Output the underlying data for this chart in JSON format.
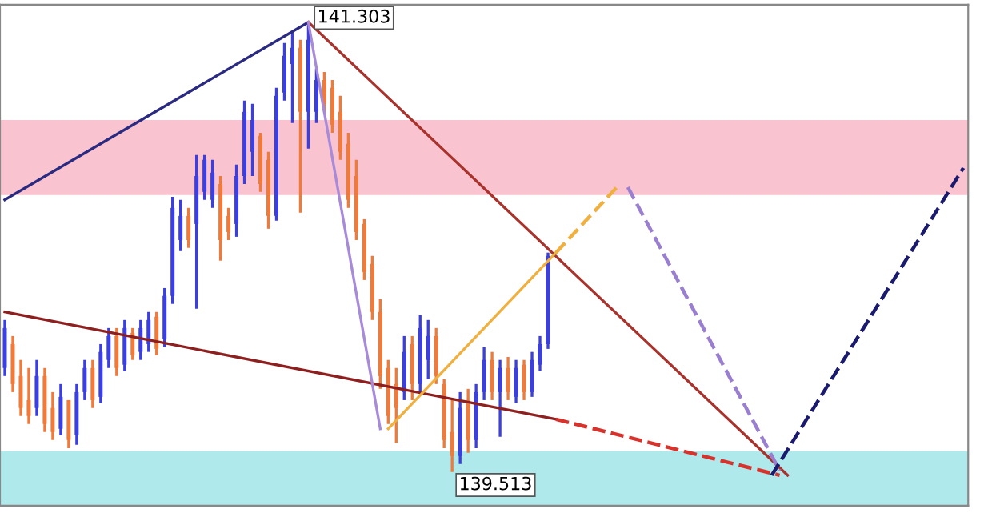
{
  "chart_data": {
    "type": "candlestick",
    "categories": [
      null,
      null,
      null,
      null,
      null,
      null,
      null,
      null,
      null,
      null,
      null,
      null,
      null,
      null,
      null,
      null,
      null,
      null,
      null,
      null,
      null,
      null,
      null,
      null,
      null,
      null,
      null,
      null,
      null,
      null,
      null,
      null,
      null,
      null,
      null,
      null,
      null,
      null,
      null,
      null,
      null,
      null,
      null,
      null,
      null,
      null,
      null,
      null,
      null,
      null,
      null,
      null,
      null,
      null,
      null,
      null,
      null,
      null,
      null,
      null,
      null,
      null,
      null,
      null,
      null,
      null,
      null,
      null,
      null,
      null,
      null,
      null,
      null,
      null,
      null,
      null,
      null,
      null,
      null,
      null,
      null,
      null,
      null,
      null,
      null,
      null,
      null,
      null,
      null,
      null,
      null,
      null,
      null,
      null,
      null,
      null,
      null,
      null,
      null,
      null,
      null,
      null,
      null,
      null,
      null,
      null,
      null,
      null,
      null,
      null,
      null,
      null,
      null,
      null,
      null,
      null,
      null,
      null,
      null,
      null,
      null
    ],
    "ohlc": [
      [
        139.927,
        140.118,
        139.895,
        140.086
      ],
      [
        140.022,
        140.054,
        139.831,
        139.863
      ],
      [
        139.895,
        139.959,
        139.736,
        139.768
      ],
      [
        139.799,
        139.927,
        139.704,
        139.736
      ],
      [
        139.768,
        139.959,
        139.736,
        139.895
      ],
      [
        139.895,
        139.927,
        139.672,
        139.704
      ],
      [
        139.768,
        139.831,
        139.64,
        139.672
      ],
      [
        139.685,
        139.863,
        139.659,
        139.812
      ],
      [
        139.799,
        139.799,
        139.608,
        139.64
      ],
      [
        139.659,
        139.863,
        139.621,
        139.831
      ],
      [
        139.831,
        139.959,
        139.799,
        139.927
      ],
      [
        139.927,
        139.959,
        139.768,
        139.799
      ],
      [
        139.812,
        140.022,
        139.787,
        139.991
      ],
      [
        139.959,
        140.086,
        139.927,
        140.054
      ],
      [
        140.054,
        140.086,
        139.895,
        139.927
      ],
      [
        139.94,
        140.118,
        139.914,
        140.086
      ],
      [
        140.067,
        140.086,
        139.959,
        139.978
      ],
      [
        139.991,
        140.118,
        139.959,
        140.086
      ],
      [
        140.022,
        140.15,
        139.991,
        140.118
      ],
      [
        140.131,
        140.15,
        139.978,
        140.003
      ],
      [
        140.042,
        140.245,
        140.01,
        140.214
      ],
      [
        140.214,
        140.608,
        140.182,
        140.564
      ],
      [
        140.436,
        140.596,
        140.392,
        140.532
      ],
      [
        140.532,
        140.564,
        140.405,
        140.436
      ],
      [
        140.5,
        140.774,
        140.163,
        140.691
      ],
      [
        140.628,
        140.774,
        140.596,
        140.755
      ],
      [
        140.596,
        140.755,
        140.564,
        140.704
      ],
      [
        140.659,
        140.691,
        140.354,
        140.436
      ],
      [
        140.532,
        140.564,
        140.436,
        140.468
      ],
      [
        140.5,
        140.736,
        140.449,
        140.691
      ],
      [
        140.691,
        140.991,
        140.659,
        140.946
      ],
      [
        140.787,
        140.978,
        140.691,
        140.914
      ],
      [
        140.851,
        140.863,
        140.628,
        140.659
      ],
      [
        140.755,
        140.787,
        140.481,
        140.532
      ],
      [
        140.532,
        141.042,
        140.513,
        141.01
      ],
      [
        141.023,
        141.22,
        140.991,
        141.169
      ],
      [
        141.137,
        141.265,
        140.902,
        141.201
      ],
      [
        141.201,
        141.233,
        140.545,
        140.946
      ],
      [
        140.946,
        141.303,
        140.8,
        141.233
      ],
      [
        140.946,
        141.118,
        140.902,
        141.073
      ],
      [
        141.073,
        141.105,
        140.946,
        140.978
      ],
      [
        141.042,
        141.073,
        140.863,
        140.895
      ],
      [
        140.946,
        141.01,
        140.755,
        140.787
      ],
      [
        140.819,
        140.863,
        140.564,
        140.596
      ],
      [
        140.691,
        140.755,
        140.436,
        140.468
      ],
      [
        140.5,
        140.519,
        140.277,
        140.309
      ],
      [
        140.341,
        140.373,
        140.118,
        140.15
      ],
      [
        140.15,
        140.201,
        139.844,
        139.895
      ],
      [
        139.927,
        139.959,
        139.704,
        139.736
      ],
      [
        139.863,
        139.927,
        139.628,
        139.768
      ],
      [
        139.831,
        140.054,
        139.799,
        139.991
      ],
      [
        140.022,
        140.054,
        139.799,
        139.863
      ],
      [
        139.863,
        140.137,
        139.831,
        140.086
      ],
      [
        139.959,
        140.118,
        139.882,
        140.054
      ],
      [
        140.054,
        140.086,
        139.863,
        139.895
      ],
      [
        139.863,
        139.882,
        139.608,
        139.64
      ],
      [
        139.672,
        139.799,
        139.513,
        139.577
      ],
      [
        139.577,
        139.831,
        139.545,
        139.768
      ],
      [
        139.799,
        139.844,
        139.589,
        139.64
      ],
      [
        139.64,
        139.863,
        139.608,
        139.831
      ],
      [
        139.831,
        140.01,
        139.799,
        139.959
      ],
      [
        139.959,
        139.991,
        139.799,
        139.831
      ],
      [
        139.831,
        139.959,
        139.653,
        139.927
      ],
      [
        139.927,
        139.971,
        139.799,
        139.831
      ],
      [
        139.812,
        139.959,
        139.787,
        139.927
      ],
      [
        139.94,
        139.959,
        139.799,
        139.831
      ],
      [
        139.831,
        139.991,
        139.812,
        139.959
      ],
      [
        139.94,
        140.054,
        139.914,
        140.022
      ],
      [
        140.022,
        140.386,
        140.003,
        140.373
      ],
      null,
      null,
      null,
      null,
      null,
      null,
      null,
      null,
      null,
      null,
      null,
      null,
      null,
      null,
      null,
      null,
      null,
      null,
      null,
      null,
      null,
      null,
      null,
      null,
      null,
      null,
      null,
      null,
      null,
      null,
      null,
      null,
      null,
      null,
      null,
      null,
      null,
      null,
      null,
      null,
      null,
      null,
      null,
      null,
      null,
      null,
      null,
      null,
      null,
      null,
      null,
      null
    ],
    "colors": [
      "#3b3fe0",
      "#f07a3a",
      "#f07a3a",
      "#f07a3a",
      "#3b3fe0",
      "#f07a3a",
      "#f07a3a",
      "#3b3fe0",
      "#f07a3a",
      "#3b3fe0",
      "#3b3fe0",
      "#f07a3a",
      "#3b3fe0",
      "#3b3fe0",
      "#f07a3a",
      "#3b3fe0",
      "#f07a3a",
      "#3b3fe0",
      "#3b3fe0",
      "#f07a3a",
      "#3b3fe0",
      "#3b3fe0",
      "#3b3fe0",
      "#f07a3a",
      "#3b3fe0",
      "#3b3fe0",
      "#3b3fe0",
      "#f07a3a",
      "#f07a3a",
      "#3b3fe0",
      "#3b3fe0",
      "#3b3fe0",
      "#f07a3a",
      "#f07a3a",
      "#3b3fe0",
      "#3b3fe0",
      "#3b3fe0",
      "#f07a3a",
      "#3b3fe0",
      "#3b3fe0",
      "#f07a3a",
      "#f07a3a",
      "#f07a3a",
      "#f07a3a",
      "#f07a3a",
      "#f07a3a",
      "#f07a3a",
      "#f07a3a",
      "#f07a3a",
      "#f07a3a",
      "#3b3fe0",
      "#f07a3a",
      "#3b3fe0",
      "#3b3fe0",
      "#f07a3a",
      "#f07a3a",
      "#f07a3a",
      "#3b3fe0",
      "#f07a3a",
      "#3b3fe0",
      "#3b3fe0",
      "#f07a3a",
      "#3b3fe0",
      "#f07a3a",
      "#3b3fe0",
      "#f07a3a",
      "#3b3fe0",
      "#3b3fe0",
      "#3b3fe0",
      null,
      null,
      null,
      null,
      null,
      null,
      null,
      null,
      null,
      null,
      null,
      null,
      null,
      null,
      null,
      null,
      null,
      null,
      null,
      null,
      null,
      null,
      null,
      null,
      null,
      null,
      null,
      null,
      null,
      null,
      null,
      null,
      null,
      null,
      null,
      null,
      null,
      null,
      null,
      null,
      null,
      null,
      null,
      null,
      null,
      null,
      null,
      null,
      null,
      null,
      null,
      null
    ],
    "series": [
      {
        "type": "line",
        "color": "#2a2a80",
        "values": [
          140.596,
          null,
          null,
          null,
          null,
          null,
          null,
          null,
          null,
          null,
          null,
          null,
          null,
          null,
          null,
          null,
          null,
          null,
          null,
          null,
          null,
          null,
          null,
          null,
          null,
          null,
          null,
          null,
          null,
          null,
          null,
          null,
          null,
          null,
          null,
          null,
          null,
          null,
          141.303,
          null,
          null,
          null,
          null,
          null,
          null,
          null,
          null,
          null,
          null,
          null,
          null,
          null,
          null,
          null,
          null,
          null,
          null,
          null,
          null,
          null,
          null,
          null,
          null,
          null,
          null,
          null,
          null,
          null,
          null,
          null,
          null,
          null,
          null,
          null,
          null,
          null,
          null,
          null,
          null,
          null,
          null,
          null,
          null,
          null,
          null,
          null,
          null,
          null,
          null,
          null,
          null,
          null,
          null,
          null,
          null,
          null,
          null,
          null,
          null,
          null,
          null,
          null,
          null,
          null,
          null,
          null,
          null,
          null,
          null,
          null,
          null,
          null,
          null,
          null,
          null,
          null,
          null,
          null,
          null,
          null,
          null
        ]
      },
      {
        "type": "line",
        "color": "#a8322c",
        "values": [
          null,
          null,
          null,
          null,
          null,
          null,
          null,
          null,
          null,
          null,
          null,
          null,
          null,
          null,
          null,
          null,
          null,
          null,
          null,
          null,
          null,
          null,
          null,
          null,
          null,
          null,
          null,
          null,
          null,
          null,
          null,
          null,
          null,
          null,
          null,
          null,
          null,
          null,
          141.303,
          null,
          null,
          null,
          null,
          null,
          null,
          null,
          null,
          null,
          null,
          null,
          null,
          null,
          null,
          null,
          null,
          null,
          null,
          null,
          null,
          null,
          null,
          null,
          null,
          null,
          null,
          null,
          null,
          null,
          null,
          null,
          null,
          null,
          null,
          null,
          null,
          null,
          null,
          null,
          null,
          null,
          null,
          null,
          null,
          null,
          null,
          null,
          null,
          null,
          null,
          null,
          null,
          null,
          null,
          null,
          null,
          null,
          null,
          null,
          139.5,
          null,
          null,
          null,
          null,
          null,
          null,
          null,
          null,
          null,
          null,
          null,
          null,
          null,
          null,
          null,
          null,
          null,
          null,
          null,
          null,
          null,
          null
        ]
      },
      {
        "type": "line",
        "color": "#8e1f1f",
        "values": [
          140.15,
          null,
          null,
          null,
          null,
          null,
          null,
          null,
          null,
          null,
          null,
          null,
          null,
          null,
          null,
          null,
          null,
          null,
          null,
          null,
          null,
          null,
          null,
          null,
          null,
          null,
          null,
          null,
          null,
          null,
          null,
          null,
          null,
          null,
          null,
          null,
          null,
          null,
          null,
          null,
          null,
          null,
          null,
          null,
          null,
          null,
          null,
          null,
          null,
          null,
          null,
          null,
          null,
          null,
          null,
          null,
          null,
          null,
          null,
          null,
          null,
          null,
          null,
          null,
          null,
          null,
          null,
          null,
          null,
          139.723,
          null,
          null,
          null,
          null,
          null,
          null,
          null,
          null,
          null,
          null,
          null,
          null,
          null,
          null,
          null,
          null,
          null,
          null,
          null,
          null,
          null,
          null,
          null,
          null,
          null,
          null,
          null,
          null,
          null,
          null,
          null,
          null,
          null,
          null,
          null,
          null,
          null,
          null,
          null,
          null,
          null,
          null,
          null,
          null,
          null,
          null,
          null,
          null,
          null,
          null,
          null
        ]
      },
      {
        "type": "line",
        "color": "#d8322c",
        "line_style": "dashed",
        "values": [
          null,
          null,
          null,
          null,
          null,
          null,
          null,
          null,
          null,
          null,
          null,
          null,
          null,
          null,
          null,
          null,
          null,
          null,
          null,
          null,
          null,
          null,
          null,
          null,
          null,
          null,
          null,
          null,
          null,
          null,
          null,
          null,
          null,
          null,
          null,
          null,
          null,
          null,
          null,
          null,
          null,
          null,
          null,
          null,
          null,
          null,
          null,
          null,
          null,
          null,
          null,
          null,
          null,
          null,
          null,
          null,
          null,
          null,
          null,
          null,
          null,
          null,
          null,
          null,
          null,
          null,
          null,
          null,
          null,
          139.723,
          null,
          null,
          null,
          null,
          null,
          null,
          null,
          null,
          null,
          null,
          null,
          null,
          null,
          null,
          null,
          null,
          null,
          null,
          null,
          null,
          null,
          null,
          null,
          null,
          null,
          null,
          null,
          139.5,
          null,
          null,
          null,
          null,
          null,
          null,
          null,
          null,
          null,
          null,
          null,
          null,
          null,
          null,
          null,
          null,
          null,
          null,
          null,
          null,
          null,
          null,
          null
        ]
      },
      {
        "type": "line",
        "color": "#a78ad8",
        "values": [
          null,
          null,
          null,
          null,
          null,
          null,
          null,
          null,
          null,
          null,
          null,
          null,
          null,
          null,
          null,
          null,
          null,
          null,
          null,
          null,
          null,
          null,
          null,
          null,
          null,
          null,
          null,
          null,
          null,
          null,
          null,
          null,
          null,
          null,
          null,
          null,
          null,
          null,
          141.303,
          null,
          null,
          null,
          null,
          null,
          null,
          null,
          null,
          139.685,
          null,
          null,
          null,
          null,
          null,
          null,
          null,
          null,
          null,
          null,
          null,
          null,
          null,
          null,
          null,
          null,
          null,
          null,
          null,
          null,
          null,
          null,
          null,
          null,
          null,
          null,
          null,
          null,
          null,
          null,
          null,
          null,
          null,
          null,
          null,
          null,
          null,
          null,
          null,
          null,
          null,
          null,
          null,
          null,
          null,
          null,
          null,
          null,
          null,
          null,
          null,
          null,
          null,
          null,
          null,
          null,
          null,
          null,
          null,
          null,
          null,
          null,
          null,
          null,
          null,
          null,
          null,
          null,
          null,
          null,
          null,
          null,
          null
        ]
      },
      {
        "type": "line",
        "color": "#f0b040",
        "values": [
          null,
          null,
          null,
          null,
          null,
          null,
          null,
          null,
          null,
          null,
          null,
          null,
          null,
          null,
          null,
          null,
          null,
          null,
          null,
          null,
          null,
          null,
          null,
          null,
          null,
          null,
          null,
          null,
          null,
          null,
          null,
          null,
          null,
          null,
          null,
          null,
          null,
          null,
          null,
          null,
          null,
          null,
          null,
          null,
          null,
          null,
          null,
          null,
          139.685,
          null,
          null,
          null,
          null,
          null,
          null,
          null,
          null,
          null,
          null,
          null,
          null,
          null,
          null,
          null,
          null,
          null,
          null,
          null,
          null,
          140.386,
          null,
          null,
          null,
          null,
          null,
          null,
          null,
          null,
          null,
          null,
          null,
          null,
          null,
          null,
          null,
          null,
          null,
          null,
          null,
          null,
          null,
          null,
          null,
          null,
          null,
          null,
          null,
          null,
          null,
          null,
          null,
          null,
          null,
          null,
          null,
          null,
          null,
          null,
          null,
          null,
          null,
          null,
          null,
          null,
          null,
          null,
          null,
          null,
          null,
          null,
          null
        ]
      },
      {
        "type": "line",
        "color": "#f0b040",
        "line_style": "dashed",
        "values": [
          null,
          null,
          null,
          null,
          null,
          null,
          null,
          null,
          null,
          null,
          null,
          null,
          null,
          null,
          null,
          null,
          null,
          null,
          null,
          null,
          null,
          null,
          null,
          null,
          null,
          null,
          null,
          null,
          null,
          null,
          null,
          null,
          null,
          null,
          null,
          null,
          null,
          null,
          null,
          null,
          null,
          null,
          null,
          null,
          null,
          null,
          null,
          null,
          null,
          null,
          null,
          null,
          null,
          null,
          null,
          null,
          null,
          null,
          null,
          null,
          null,
          null,
          null,
          null,
          null,
          null,
          null,
          null,
          null,
          140.386,
          null,
          null,
          null,
          null,
          null,
          null,
          null,
          140.659,
          null,
          null,
          null,
          null,
          null,
          null,
          null,
          null,
          null,
          null,
          null,
          null,
          null,
          null,
          null,
          null,
          null,
          null,
          null,
          null,
          null,
          null,
          null,
          null,
          null,
          null,
          null,
          null,
          null,
          null,
          null,
          null,
          null,
          null,
          null,
          null,
          null,
          null,
          null,
          null,
          null,
          null,
          null
        ]
      },
      {
        "type": "line",
        "color": "#9a7fd0",
        "line_style": "dashed",
        "values": [
          null,
          null,
          null,
          null,
          null,
          null,
          null,
          null,
          null,
          null,
          null,
          null,
          null,
          null,
          null,
          null,
          null,
          null,
          null,
          null,
          null,
          null,
          null,
          null,
          null,
          null,
          null,
          null,
          null,
          null,
          null,
          null,
          null,
          null,
          null,
          null,
          null,
          null,
          null,
          null,
          null,
          null,
          null,
          null,
          null,
          null,
          null,
          null,
          null,
          null,
          null,
          null,
          null,
          null,
          null,
          null,
          null,
          null,
          null,
          null,
          null,
          null,
          null,
          null,
          null,
          null,
          null,
          null,
          null,
          null,
          null,
          null,
          null,
          null,
          null,
          null,
          null,
          null,
          140.646,
          null,
          null,
          null,
          null,
          null,
          null,
          null,
          null,
          null,
          null,
          null,
          null,
          null,
          null,
          null,
          null,
          null,
          null,
          139.519,
          null,
          null,
          null,
          null,
          null,
          null,
          null,
          null,
          null,
          null,
          null,
          null,
          null,
          null,
          null,
          null,
          null,
          null,
          null,
          null,
          null,
          null,
          null
        ]
      },
      {
        "type": "line",
        "color": "#1a1a6e",
        "line_style": "dashed",
        "values": [
          null,
          null,
          null,
          null,
          null,
          null,
          null,
          null,
          null,
          null,
          null,
          null,
          null,
          null,
          null,
          null,
          null,
          null,
          null,
          null,
          null,
          null,
          null,
          null,
          null,
          null,
          null,
          null,
          null,
          null,
          null,
          null,
          null,
          null,
          null,
          null,
          null,
          null,
          null,
          null,
          null,
          null,
          null,
          null,
          null,
          null,
          null,
          null,
          null,
          null,
          null,
          null,
          null,
          null,
          null,
          null,
          null,
          null,
          null,
          null,
          null,
          null,
          null,
          null,
          null,
          null,
          null,
          null,
          null,
          null,
          null,
          null,
          null,
          null,
          null,
          null,
          null,
          null,
          null,
          null,
          null,
          null,
          null,
          null,
          null,
          null,
          null,
          null,
          null,
          null,
          null,
          null,
          null,
          null,
          null,
          null,
          139.5,
          null,
          null,
          null,
          null,
          null,
          null,
          null,
          null,
          null,
          null,
          null,
          null,
          null,
          null,
          null,
          null,
          null,
          null,
          null,
          null,
          null,
          null,
          null,
          140.723
        ]
      }
    ],
    "bands": [
      {
        "axis": "y",
        "from": 140.615,
        "to": 140.914,
        "color": "#f9c3cf"
      },
      {
        "axis": "y",
        "from": 139.379,
        "to": 139.596,
        "color": "#afe9ec"
      }
    ],
    "annotations": [
      "141.303",
      "139.513"
    ],
    "ylim": [
      139.379,
      141.373
    ]
  }
}
